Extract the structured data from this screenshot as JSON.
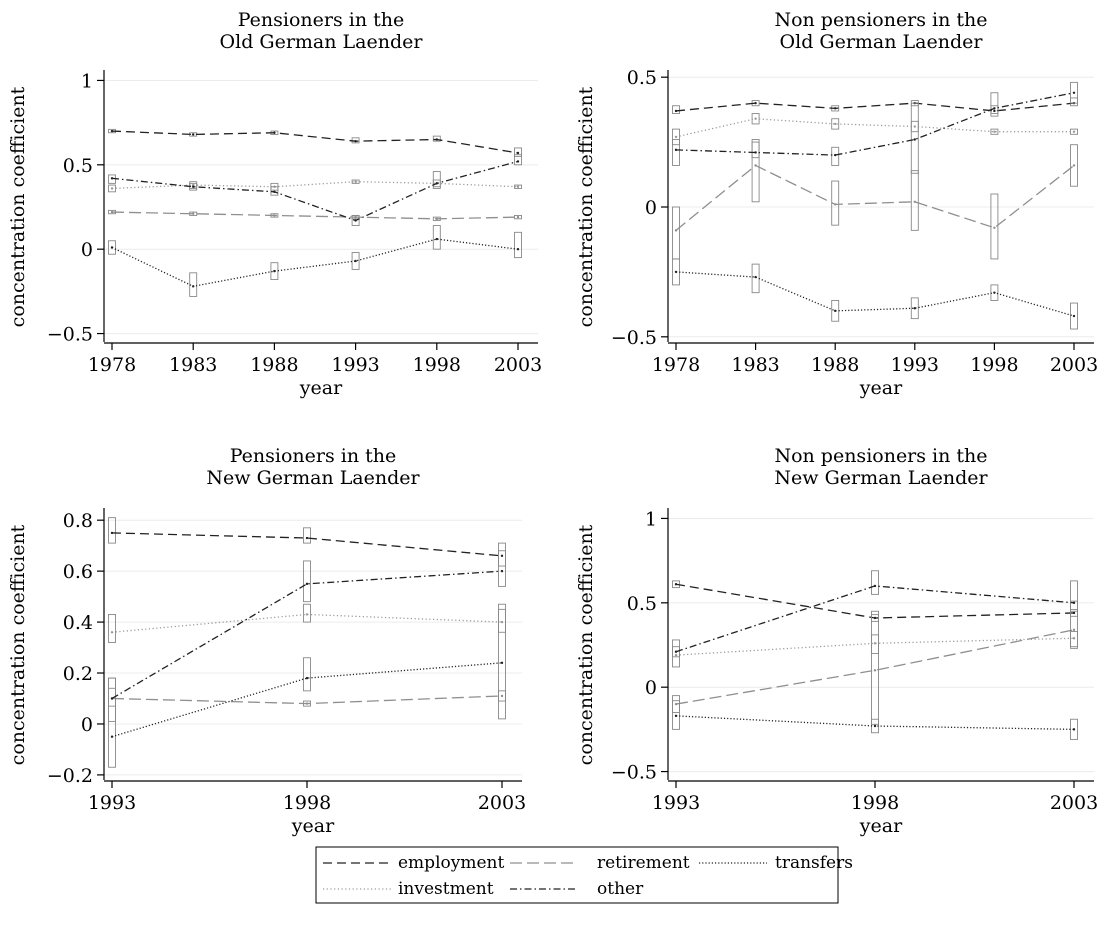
{
  "chart_data": [
    {
      "type": "line",
      "title": "Pensioners in the\nOld German Laender",
      "xlabel": "year",
      "ylabel": "concentration coefficient",
      "x": [
        1978,
        1983,
        1988,
        1993,
        1998,
        2003
      ],
      "xticks": [
        1978,
        1983,
        1988,
        1993,
        1998,
        2003
      ],
      "ylim": [
        -0.55,
        1.05
      ],
      "yticks": [
        -0.5,
        0,
        0.5,
        1
      ],
      "yticklabels": [
        "−0.5",
        "0",
        "0.5",
        "1"
      ],
      "series": [
        {
          "key": "employment",
          "values": [
            0.7,
            0.68,
            0.69,
            0.64,
            0.65,
            0.57
          ],
          "ci": [
            [
              0.69,
              0.71
            ],
            [
              0.67,
              0.69
            ],
            [
              0.68,
              0.7
            ],
            [
              0.63,
              0.66
            ],
            [
              0.64,
              0.67
            ],
            [
              0.55,
              0.6
            ]
          ]
        },
        {
          "key": "retirement",
          "values": [
            0.22,
            0.21,
            0.2,
            0.19,
            0.18,
            0.19
          ],
          "ci": [
            [
              0.21,
              0.23
            ],
            [
              0.2,
              0.22
            ],
            [
              0.19,
              0.21
            ],
            [
              0.18,
              0.2
            ],
            [
              0.17,
              0.19
            ],
            [
              0.18,
              0.2
            ]
          ]
        },
        {
          "key": "transfers",
          "values": [
            0.01,
            -0.22,
            -0.13,
            -0.07,
            0.06,
            0.0
          ],
          "ci": [
            [
              -0.03,
              0.05
            ],
            [
              -0.28,
              -0.14
            ],
            [
              -0.18,
              -0.08
            ],
            [
              -0.12,
              -0.02
            ],
            [
              0.0,
              0.14
            ],
            [
              -0.05,
              0.1
            ]
          ]
        },
        {
          "key": "investment",
          "values": [
            0.36,
            0.38,
            0.37,
            0.4,
            0.39,
            0.37
          ],
          "ci": [
            [
              0.34,
              0.38
            ],
            [
              0.36,
              0.4
            ],
            [
              0.35,
              0.39
            ],
            [
              0.39,
              0.41
            ],
            [
              0.37,
              0.41
            ],
            [
              0.36,
              0.38
            ]
          ]
        },
        {
          "key": "other",
          "values": [
            0.42,
            0.37,
            0.34,
            0.17,
            0.39,
            0.52
          ],
          "ci": [
            [
              0.39,
              0.44
            ],
            [
              0.35,
              0.39
            ],
            [
              0.32,
              0.37
            ],
            [
              0.14,
              0.2
            ],
            [
              0.36,
              0.46
            ],
            [
              0.5,
              0.56
            ]
          ]
        }
      ]
    },
    {
      "type": "line",
      "title": "Non pensioners in the\nOld German Laender",
      "xlabel": "year",
      "ylabel": "concentration coefficient",
      "x": [
        1978,
        1983,
        1988,
        1993,
        1998,
        2003
      ],
      "xticks": [
        1978,
        1983,
        1988,
        1993,
        1998,
        2003
      ],
      "ylim": [
        -0.52,
        0.52
      ],
      "yticks": [
        -0.5,
        0,
        0.5
      ],
      "yticklabels": [
        "−0.5",
        "0",
        "0.5"
      ],
      "series": [
        {
          "key": "employment",
          "values": [
            0.37,
            0.4,
            0.38,
            0.4,
            0.37,
            0.4
          ],
          "ci": [
            [
              0.36,
              0.39
            ],
            [
              0.39,
              0.41
            ],
            [
              0.37,
              0.39
            ],
            [
              0.39,
              0.41
            ],
            [
              0.36,
              0.39
            ],
            [
              0.39,
              0.42
            ]
          ]
        },
        {
          "key": "retirement",
          "values": [
            -0.09,
            0.16,
            0.01,
            0.02,
            -0.08,
            0.16
          ],
          "ci": [
            [
              -0.2,
              0.0
            ],
            [
              0.02,
              0.25
            ],
            [
              -0.07,
              0.1
            ],
            [
              -0.09,
              0.14
            ],
            [
              -0.2,
              0.05
            ],
            [
              0.08,
              0.24
            ]
          ]
        },
        {
          "key": "transfers",
          "values": [
            -0.25,
            -0.27,
            -0.4,
            -0.39,
            -0.33,
            -0.42
          ],
          "ci": [
            [
              -0.3,
              -0.2
            ],
            [
              -0.33,
              -0.22
            ],
            [
              -0.44,
              -0.36
            ],
            [
              -0.43,
              -0.35
            ],
            [
              -0.36,
              -0.3
            ],
            [
              -0.47,
              -0.37
            ]
          ]
        },
        {
          "key": "investment",
          "values": [
            0.27,
            0.34,
            0.32,
            0.31,
            0.29,
            0.29
          ],
          "ci": [
            [
              0.24,
              0.3
            ],
            [
              0.32,
              0.36
            ],
            [
              0.3,
              0.34
            ],
            [
              0.29,
              0.33
            ],
            [
              0.28,
              0.3
            ],
            [
              0.28,
              0.3
            ]
          ]
        },
        {
          "key": "other",
          "values": [
            0.22,
            0.21,
            0.2,
            0.26,
            0.38,
            0.44
          ],
          "ci": [
            [
              0.16,
              0.26
            ],
            [
              0.19,
              0.26
            ],
            [
              0.16,
              0.23
            ],
            [
              0.13,
              0.4
            ],
            [
              0.35,
              0.44
            ],
            [
              0.4,
              0.48
            ]
          ]
        }
      ]
    },
    {
      "type": "line",
      "title": "Pensioners in the\nNew German Laender",
      "xlabel": "year",
      "ylabel": "concentration coefficient",
      "x": [
        1993,
        1998,
        2003
      ],
      "xticks": [
        1993,
        1998,
        2003
      ],
      "ylim": [
        -0.22,
        0.84
      ],
      "yticks": [
        -0.2,
        0,
        0.2,
        0.4,
        0.6,
        0.8
      ],
      "yticklabels": [
        "−0.2",
        "0",
        "0.2",
        "0.4",
        "0.6",
        "0.8"
      ],
      "series": [
        {
          "key": "employment",
          "values": [
            0.75,
            0.73,
            0.66
          ],
          "ci": [
            [
              0.71,
              0.81
            ],
            [
              0.71,
              0.77
            ],
            [
              0.62,
              0.71
            ]
          ]
        },
        {
          "key": "retirement",
          "values": [
            0.1,
            0.08,
            0.11
          ],
          "ci": [
            [
              0.07,
              0.14
            ],
            [
              0.07,
              0.09
            ],
            [
              0.09,
              0.13
            ]
          ]
        },
        {
          "key": "transfers",
          "values": [
            -0.05,
            0.18,
            0.24
          ],
          "ci": [
            [
              -0.17,
              0.18
            ],
            [
              0.13,
              0.26
            ],
            [
              0.02,
              0.47
            ]
          ]
        },
        {
          "key": "investment",
          "values": [
            0.36,
            0.43,
            0.4
          ],
          "ci": [
            [
              0.32,
              0.43
            ],
            [
              0.4,
              0.47
            ],
            [
              0.36,
              0.45
            ]
          ]
        },
        {
          "key": "other",
          "values": [
            0.1,
            0.55,
            0.6
          ],
          "ci": [
            [
              0.01,
              0.18
            ],
            [
              0.48,
              0.64
            ],
            [
              0.54,
              0.68
            ]
          ]
        }
      ]
    },
    {
      "type": "line",
      "title": "Non pensioners in the\nNew German Laender",
      "xlabel": "year",
      "ylabel": "concentration coefficient",
      "x": [
        1993,
        1998,
        2003
      ],
      "xticks": [
        1993,
        1998,
        2003
      ],
      "ylim": [
        -0.55,
        1.05
      ],
      "yticks": [
        -0.5,
        0,
        0.5,
        1
      ],
      "yticklabels": [
        "−0.5",
        "0",
        "0.5",
        "1"
      ],
      "series": [
        {
          "key": "employment",
          "values": [
            0.61,
            0.41,
            0.44
          ],
          "ci": [
            [
              0.59,
              0.63
            ],
            [
              0.39,
              0.43
            ],
            [
              0.42,
              0.46
            ]
          ]
        },
        {
          "key": "retirement",
          "values": [
            -0.1,
            0.1,
            0.34
          ],
          "ci": [
            [
              -0.15,
              -0.05
            ],
            [
              -0.22,
              0.45
            ],
            [
              0.23,
              0.51
            ]
          ]
        },
        {
          "key": "transfers",
          "values": [
            -0.17,
            -0.23,
            -0.25
          ],
          "ci": [
            [
              -0.25,
              -0.08
            ],
            [
              -0.27,
              -0.19
            ],
            [
              -0.31,
              -0.19
            ]
          ]
        },
        {
          "key": "investment",
          "values": [
            0.19,
            0.26,
            0.29
          ],
          "ci": [
            [
              0.12,
              0.28
            ],
            [
              0.2,
              0.31
            ],
            [
              0.24,
              0.33
            ]
          ]
        },
        {
          "key": "other",
          "values": [
            0.21,
            0.6,
            0.5
          ],
          "ci": [
            [
              0.18,
              0.24
            ],
            [
              0.55,
              0.69
            ],
            [
              0.45,
              0.63
            ]
          ]
        }
      ]
    }
  ],
  "legend": {
    "placement": "bottom",
    "items": [
      {
        "key": "employment",
        "label": "employment",
        "color": "#222222",
        "dash": "9,5"
      },
      {
        "key": "retirement",
        "label": "retirement",
        "color": "#8f8f8f",
        "dash": "12,5"
      },
      {
        "key": "transfers",
        "label": "transfers",
        "color": "#222222",
        "dash": "1.2,2"
      },
      {
        "key": "investment",
        "label": "investment",
        "color": "#9a9a9a",
        "dash": "1.2,2.5"
      },
      {
        "key": "other",
        "label": "other",
        "color": "#222222",
        "dash": "7,3,1.5,3"
      }
    ]
  }
}
